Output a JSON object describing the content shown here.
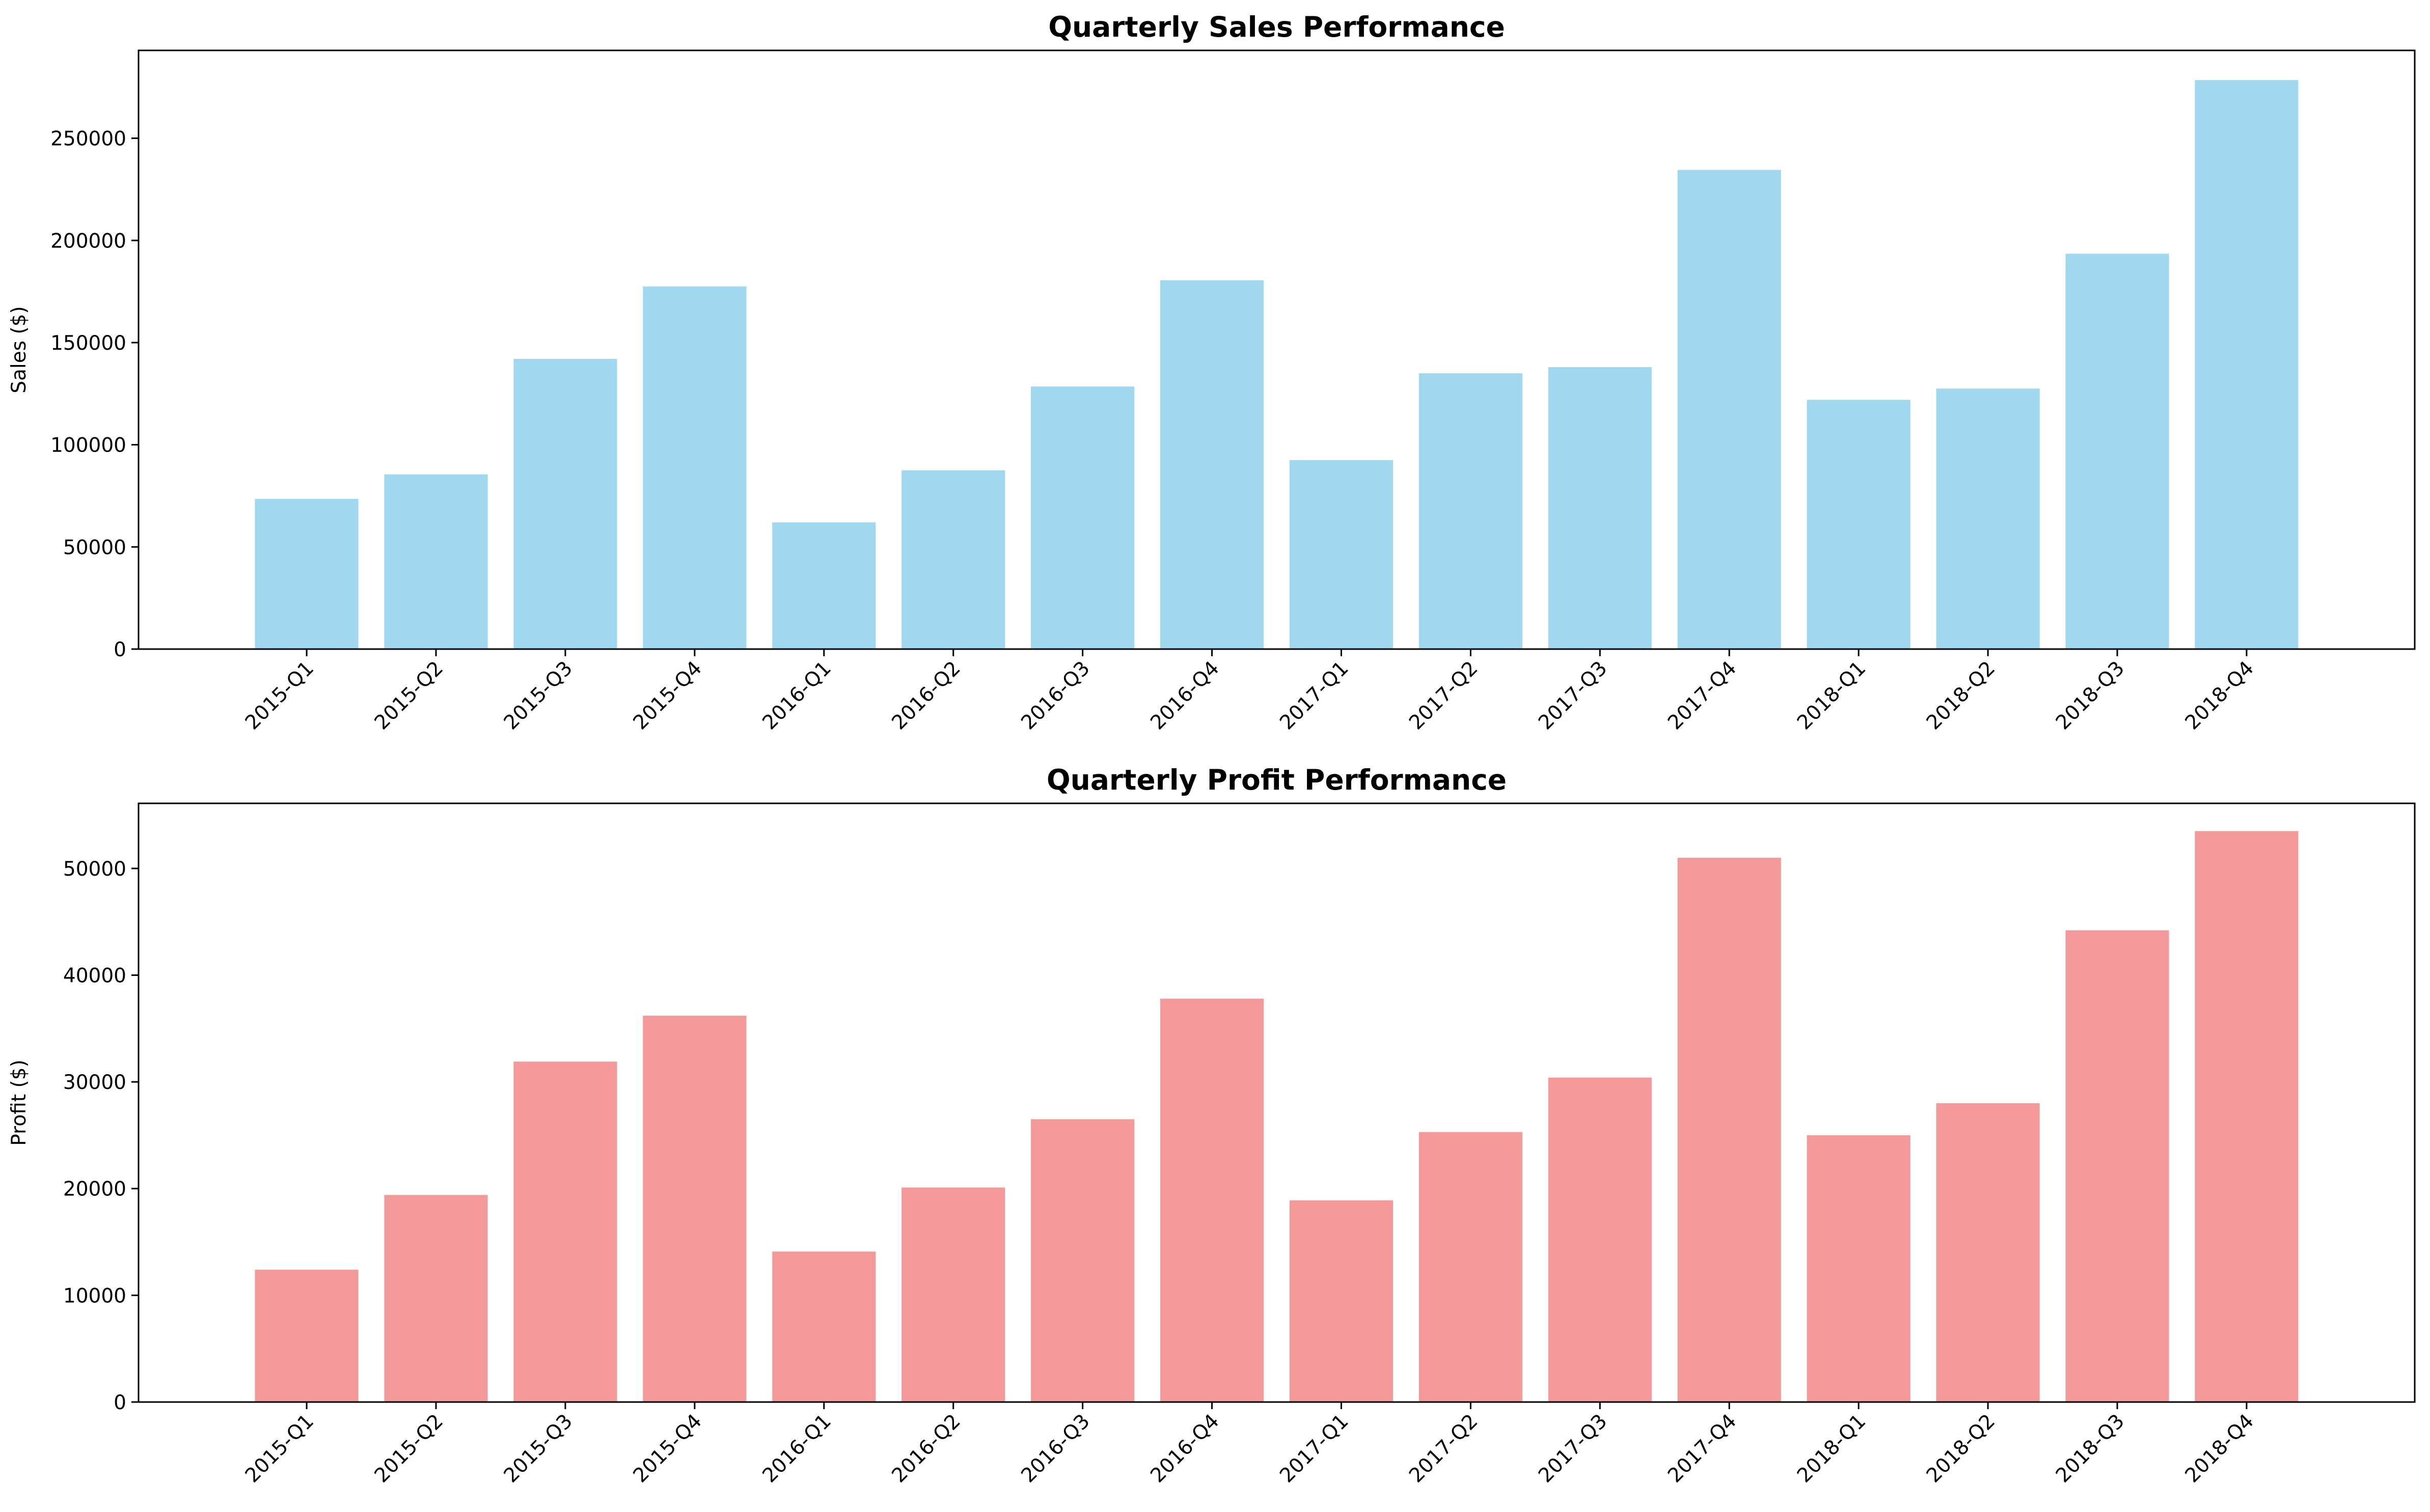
{
  "chart_data": [
    {
      "type": "bar",
      "title": "Quarterly Sales Performance",
      "xlabel": "",
      "ylabel": "Sales ($)",
      "ylim": [
        0,
        293000
      ],
      "yticks": [
        0,
        50000,
        100000,
        150000,
        200000,
        250000
      ],
      "color": "#87CEEB",
      "categories": [
        "2015-Q1",
        "2015-Q2",
        "2015-Q3",
        "2015-Q4",
        "2016-Q1",
        "2016-Q2",
        "2016-Q3",
        "2016-Q4",
        "2017-Q1",
        "2017-Q2",
        "2017-Q3",
        "2017-Q4",
        "2018-Q1",
        "2018-Q2",
        "2018-Q3",
        "2018-Q4"
      ],
      "values": [
        73500,
        85500,
        142000,
        177500,
        62000,
        87500,
        128500,
        180500,
        92500,
        135000,
        138000,
        234500,
        122000,
        127500,
        193500,
        278500
      ],
      "grid": false,
      "legend": "none"
    },
    {
      "type": "bar",
      "title": "Quarterly Profit Performance",
      "xlabel": "",
      "ylabel": "Profit ($)",
      "ylim": [
        0,
        56100
      ],
      "yticks": [
        0,
        10000,
        20000,
        30000,
        40000,
        50000
      ],
      "color": "#F08080",
      "categories": [
        "2015-Q1",
        "2015-Q2",
        "2015-Q3",
        "2015-Q4",
        "2016-Q1",
        "2016-Q2",
        "2016-Q3",
        "2016-Q4",
        "2017-Q1",
        "2017-Q2",
        "2017-Q3",
        "2017-Q4",
        "2018-Q1",
        "2018-Q2",
        "2018-Q3",
        "2018-Q4"
      ],
      "values": [
        12400,
        19400,
        31900,
        36200,
        14100,
        20100,
        26500,
        37800,
        18900,
        25300,
        30400,
        51000,
        25000,
        28000,
        44200,
        53500
      ],
      "grid": false,
      "legend": "none"
    }
  ]
}
